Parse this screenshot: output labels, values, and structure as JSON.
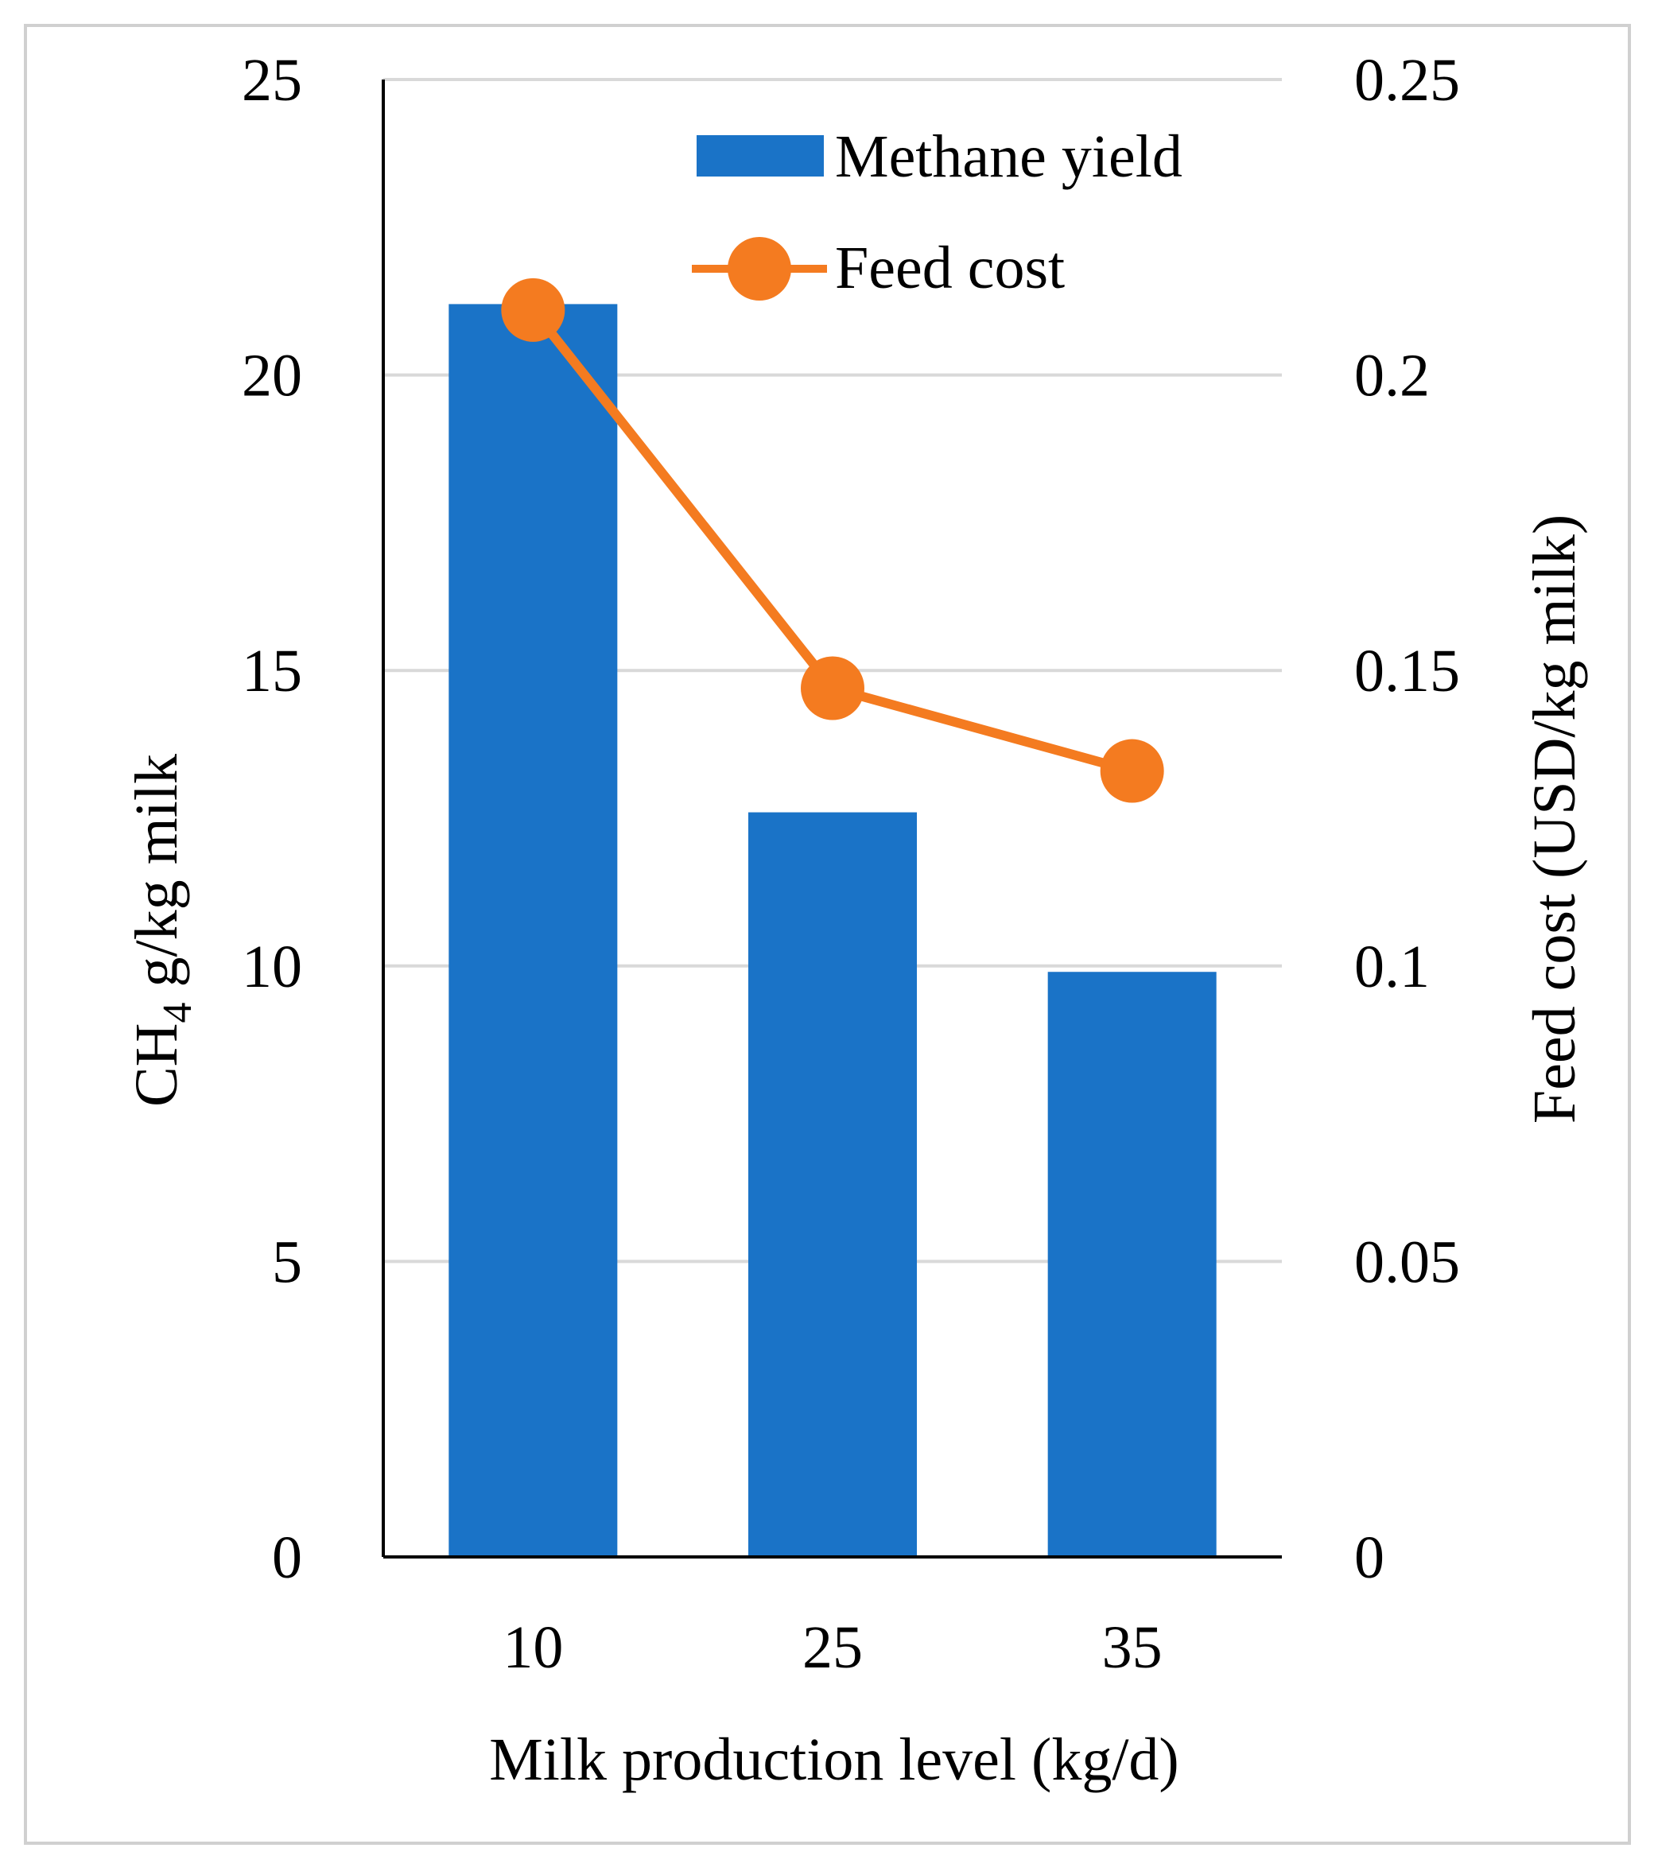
{
  "chart_data": {
    "type": "bar+line",
    "categories": [
      "10",
      "25",
      "35"
    ],
    "series": [
      {
        "name": "Methane yield",
        "kind": "bar",
        "axis": "left",
        "color": "#1a73c7",
        "values": [
          21.2,
          12.6,
          9.9
        ]
      },
      {
        "name": "Feed cost",
        "kind": "line",
        "axis": "right",
        "color": "#f47b20",
        "values": [
          0.211,
          0.147,
          0.133
        ]
      }
    ],
    "xlabel": "Milk production level (kg/d)",
    "ylabel": {
      "prefix": "CH",
      "subscript": "4",
      "suffix": " g/kg milk"
    },
    "y2label": "Feed cost (USD/kg milk)",
    "ylim": [
      0,
      25
    ],
    "y2lim": [
      0,
      0.25
    ],
    "yticks": [
      "0",
      "5",
      "10",
      "15",
      "20",
      "25"
    ],
    "y2ticks": [
      "0",
      "0.05",
      "0.1",
      "0.15",
      "0.2",
      "0.25"
    ],
    "grid": true,
    "legend_position": "top-right",
    "gridline_color": "#d9d9d9",
    "axis_color": "#000000"
  }
}
